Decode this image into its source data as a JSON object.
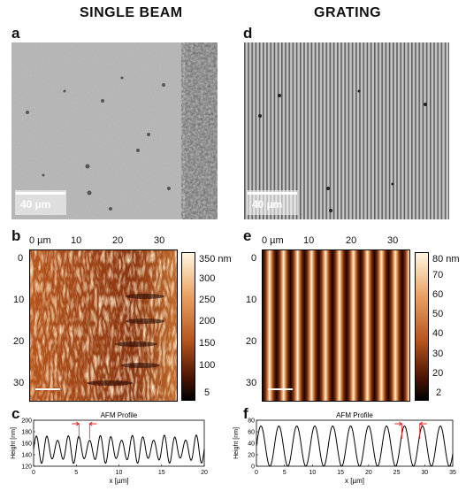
{
  "titles": {
    "left": "SINGLE BEAM",
    "right": "GRATING"
  },
  "panels": {
    "a": {
      "letter": "a",
      "scale": "40 µm"
    },
    "d": {
      "letter": "d",
      "scale": "40 µm"
    },
    "b": {
      "letter": "b",
      "x_ticks": [
        "0 µm",
        "10",
        "20",
        "30"
      ],
      "y_ticks": [
        "0",
        "10",
        "20",
        "30"
      ],
      "cbar_ticks": [
        "350 nm",
        "300",
        "250",
        "200",
        "150",
        "100",
        "5"
      ],
      "colors": {
        "low": "#1a0500",
        "mid": "#b5541c",
        "high": "#fff6e0"
      }
    },
    "e": {
      "letter": "e",
      "x_ticks": [
        "0 µm",
        "10",
        "20",
        "30"
      ],
      "y_ticks": [
        "0",
        "10",
        "20",
        "30"
      ],
      "cbar_ticks": [
        "80 nm",
        "70",
        "60",
        "50",
        "40",
        "30",
        "20",
        "2"
      ],
      "colors": {
        "low": "#1a0500",
        "mid": "#b5541c",
        "high": "#fff6e0"
      }
    }
  },
  "chart_data": [
    {
      "panel": "c",
      "type": "line",
      "title": "AFM Profile",
      "xlabel": "x [µm]",
      "ylabel": "Height [nm]",
      "xlim": [
        0,
        20
      ],
      "ylim": [
        120,
        200
      ],
      "x_ticks": [
        "0",
        "5",
        "10",
        "15",
        "20"
      ],
      "y_ticks": [
        "200",
        "180",
        "160",
        "140",
        "120"
      ],
      "series": [
        {
          "period": 1.25,
          "baseline": 150,
          "amplitude": 20
        }
      ],
      "color": "#000000",
      "marker_color": "#e02020"
    },
    {
      "panel": "f",
      "type": "line",
      "title": "AFM Profile",
      "xlabel": "x [µm]",
      "ylabel": "Height [nm]",
      "xlim": [
        0,
        35
      ],
      "ylim": [
        0,
        80
      ],
      "x_ticks": [
        "0",
        "5",
        "10",
        "15",
        "20",
        "25",
        "30",
        "35"
      ],
      "y_ticks": [
        "80",
        "60",
        "40",
        "20",
        "0"
      ],
      "series": [
        {
          "period": 3.2,
          "baseline": 35,
          "amplitude": 35
        }
      ],
      "color": "#000000",
      "marker_color": "#e02020"
    }
  ]
}
